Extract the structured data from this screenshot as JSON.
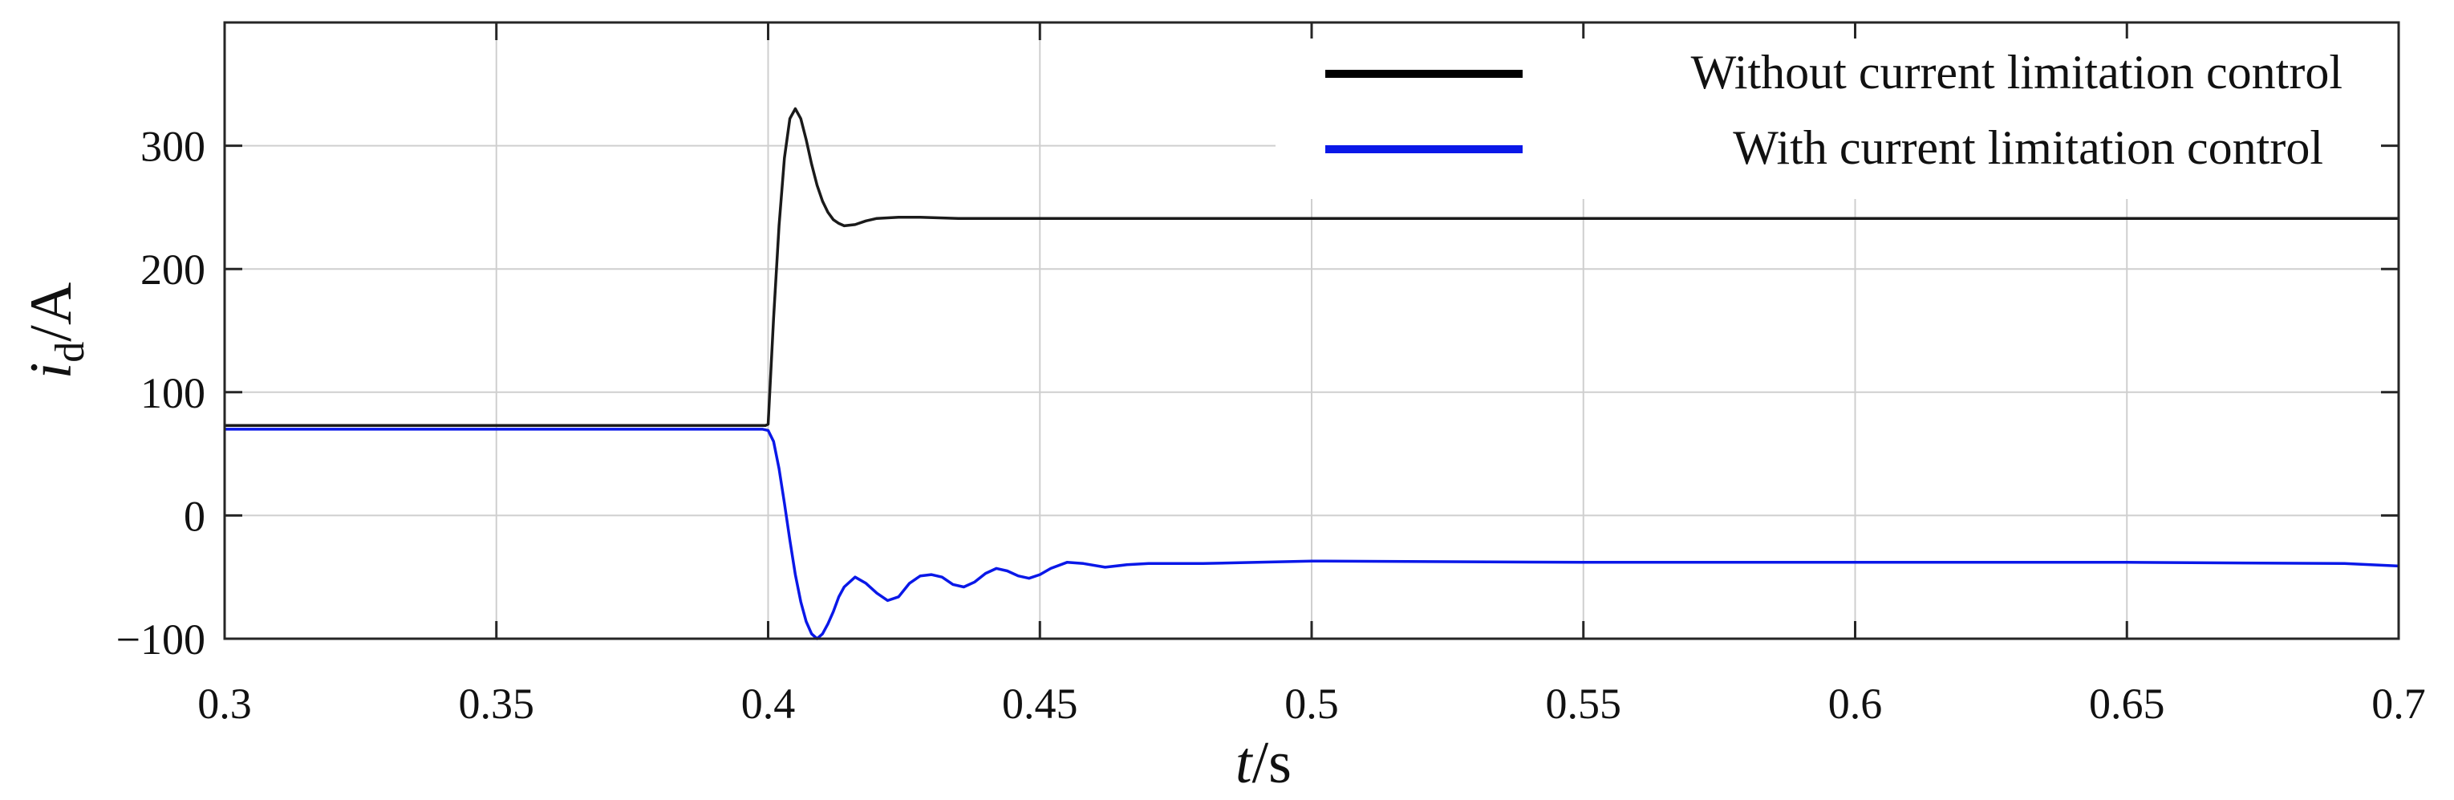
{
  "chart_data": {
    "type": "line",
    "xlabel": {
      "var": "t",
      "unit": "/s"
    },
    "ylabel": {
      "var": "i",
      "sub": "d",
      "unit": "/A"
    },
    "xlim": [
      0.3,
      0.7
    ],
    "ylim": [
      -100,
      400
    ],
    "xticks": [
      0.3,
      0.35,
      0.4,
      0.45,
      0.5,
      0.55,
      0.6,
      0.65,
      0.7
    ],
    "xtick_labels": [
      "0.3",
      "0.35",
      "0.4",
      "0.45",
      "0.5",
      "0.55",
      "0.6",
      "0.65",
      "0.7"
    ],
    "yticks": [
      -100,
      0,
      100,
      200,
      300
    ],
    "ytick_labels": [
      "−100",
      "0",
      "100",
      "200",
      "300"
    ],
    "grid": true,
    "legend_position": "top-right",
    "series": [
      {
        "name": "Without current limitation control",
        "color": "#1a1a1a",
        "x": [
          0.3,
          0.35,
          0.3995,
          0.4,
          0.401,
          0.402,
          0.403,
          0.404,
          0.405,
          0.406,
          0.407,
          0.408,
          0.409,
          0.41,
          0.411,
          0.412,
          0.413,
          0.414,
          0.416,
          0.418,
          0.42,
          0.424,
          0.428,
          0.435,
          0.45,
          0.5,
          0.6,
          0.7
        ],
        "y": [
          73,
          73,
          73,
          74,
          160,
          235,
          290,
          322,
          330,
          322,
          305,
          285,
          268,
          255,
          246,
          240,
          237,
          235,
          236,
          239,
          241,
          242,
          242,
          241,
          241,
          241,
          241,
          241
        ]
      },
      {
        "name": "With current limitation control",
        "color": "#0a18e8",
        "x": [
          0.3,
          0.35,
          0.399,
          0.4,
          0.401,
          0.402,
          0.403,
          0.404,
          0.405,
          0.406,
          0.407,
          0.408,
          0.409,
          0.41,
          0.411,
          0.412,
          0.413,
          0.414,
          0.416,
          0.418,
          0.42,
          0.422,
          0.424,
          0.426,
          0.428,
          0.43,
          0.432,
          0.434,
          0.436,
          0.438,
          0.44,
          0.442,
          0.444,
          0.446,
          0.448,
          0.45,
          0.452,
          0.455,
          0.458,
          0.462,
          0.466,
          0.47,
          0.48,
          0.49,
          0.5,
          0.55,
          0.6,
          0.65,
          0.69,
          0.7
        ],
        "y": [
          70,
          70,
          70,
          69,
          60,
          38,
          10,
          -20,
          -48,
          -70,
          -86,
          -96,
          -100,
          -96,
          -88,
          -78,
          -66,
          -58,
          -50,
          -55,
          -63,
          -69,
          -66,
          -55,
          -49,
          -48,
          -50,
          -56,
          -58,
          -54,
          -47,
          -43,
          -45,
          -49,
          -51,
          -48,
          -43,
          -38,
          -39,
          -42,
          -40,
          -39,
          -39,
          -38,
          -37,
          -38,
          -38,
          -38,
          -39,
          -41
        ]
      }
    ]
  }
}
